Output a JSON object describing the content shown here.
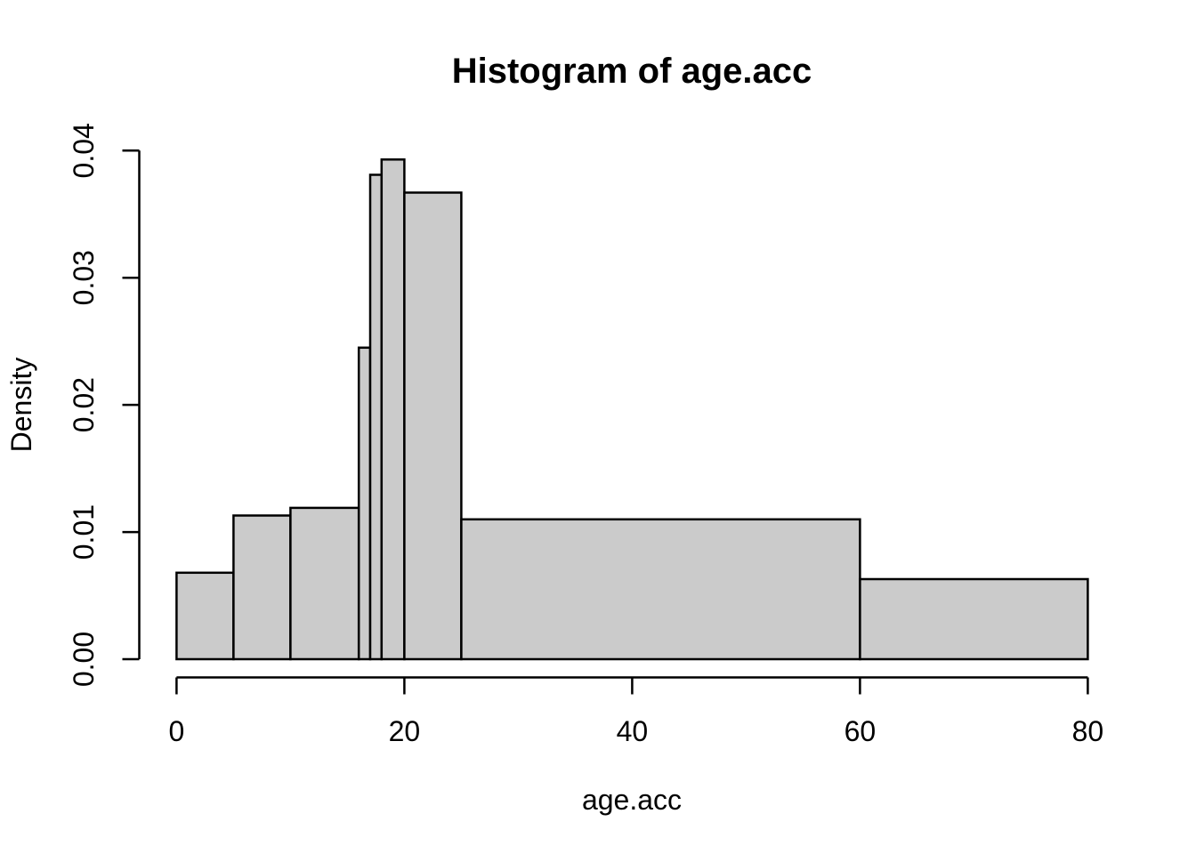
{
  "title": "Histogram of age.acc",
  "colors": {
    "background": "#FFFFFF",
    "bar_fill": "#CBCBCB",
    "bar_stroke": "#000000",
    "axis": "#000000",
    "text": "#000000"
  },
  "chart_data": {
    "type": "bar",
    "subtype": "density-histogram",
    "title": "Histogram of age.acc",
    "xlabel": "age.acc",
    "ylabel": "Density",
    "xlim": [
      0,
      80
    ],
    "ylim": [
      0,
      0.04
    ],
    "x_ticks": [
      0,
      20,
      40,
      60,
      80
    ],
    "x_tick_labels": [
      "0",
      "20",
      "40",
      "60",
      "80"
    ],
    "y_ticks": [
      0,
      0.01,
      0.02,
      0.03,
      0.04
    ],
    "y_tick_labels": [
      "0.00",
      "0.01",
      "0.02",
      "0.03",
      "0.04"
    ],
    "grid": false,
    "legend": null,
    "bins": [
      {
        "from": 0,
        "to": 5,
        "density": 0.0068
      },
      {
        "from": 5,
        "to": 10,
        "density": 0.0113
      },
      {
        "from": 10,
        "to": 16,
        "density": 0.0119
      },
      {
        "from": 16,
        "to": 17,
        "density": 0.0245
      },
      {
        "from": 17,
        "to": 18,
        "density": 0.0381
      },
      {
        "from": 18,
        "to": 20,
        "density": 0.0393
      },
      {
        "from": 20,
        "to": 25,
        "density": 0.0367
      },
      {
        "from": 25,
        "to": 60,
        "density": 0.011
      },
      {
        "from": 60,
        "to": 80,
        "density": 0.0063
      }
    ]
  }
}
